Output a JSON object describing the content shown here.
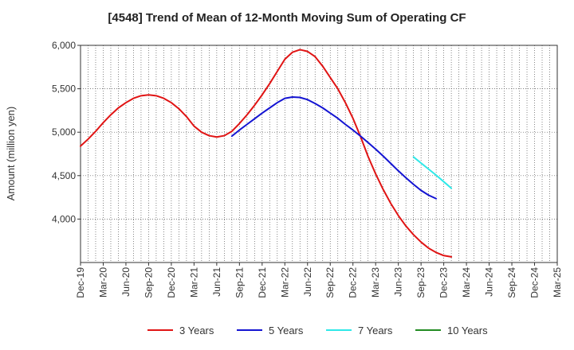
{
  "chart_data": {
    "type": "line",
    "title": "[4548]  Trend of Mean of 12-Month Moving Sum of Operating CF",
    "xlabel": "",
    "ylabel": "Amount (million yen)",
    "ylim": [
      3500,
      6000
    ],
    "yticks": [
      4000,
      4500,
      5000,
      5500,
      6000
    ],
    "ytick_labels": [
      "4,000",
      "4,500",
      "5,000",
      "5,500",
      "6,000"
    ],
    "x_start": "Dec-19",
    "x_months": 63,
    "xtick_labels": [
      "Dec-19",
      "Mar-20",
      "Jun-20",
      "Sep-20",
      "Dec-20",
      "Mar-21",
      "Jun-21",
      "Sep-21",
      "Dec-21",
      "Mar-22",
      "Jun-22",
      "Sep-22",
      "Dec-22",
      "Mar-23",
      "Jun-23",
      "Sep-23",
      "Dec-23",
      "Mar-24",
      "Jun-24",
      "Sep-24",
      "Dec-24",
      "Mar-25"
    ],
    "grid": true,
    "legend_position": "bottom",
    "series": [
      {
        "name": "3 Years",
        "color": "#e01414",
        "start_index": 0,
        "values": [
          4840,
          4920,
          5010,
          5110,
          5200,
          5280,
          5340,
          5390,
          5420,
          5430,
          5420,
          5390,
          5340,
          5270,
          5180,
          5070,
          5000,
          4960,
          4945,
          4960,
          5010,
          5100,
          5200,
          5310,
          5430,
          5560,
          5700,
          5840,
          5920,
          5950,
          5930,
          5870,
          5760,
          5630,
          5500,
          5340,
          5160,
          4950,
          4720,
          4520,
          4340,
          4180,
          4040,
          3920,
          3820,
          3735,
          3665,
          3615,
          3580,
          3565
        ]
      },
      {
        "name": "5 Years",
        "color": "#1414d2",
        "start_index": 20,
        "values": [
          4955,
          5025,
          5090,
          5155,
          5220,
          5280,
          5340,
          5390,
          5405,
          5400,
          5375,
          5330,
          5280,
          5220,
          5160,
          5090,
          5025,
          4955,
          4880,
          4805,
          4725,
          4640,
          4555,
          4475,
          4400,
          4330,
          4275,
          4235
        ]
      },
      {
        "name": "7 Years",
        "color": "#2ee8e8",
        "start_index": 44,
        "values": [
          4715,
          4645,
          4575,
          4505,
          4430,
          4355
        ]
      },
      {
        "name": "10 Years",
        "color": "#228b22",
        "start_index": 0,
        "values": []
      }
    ]
  }
}
